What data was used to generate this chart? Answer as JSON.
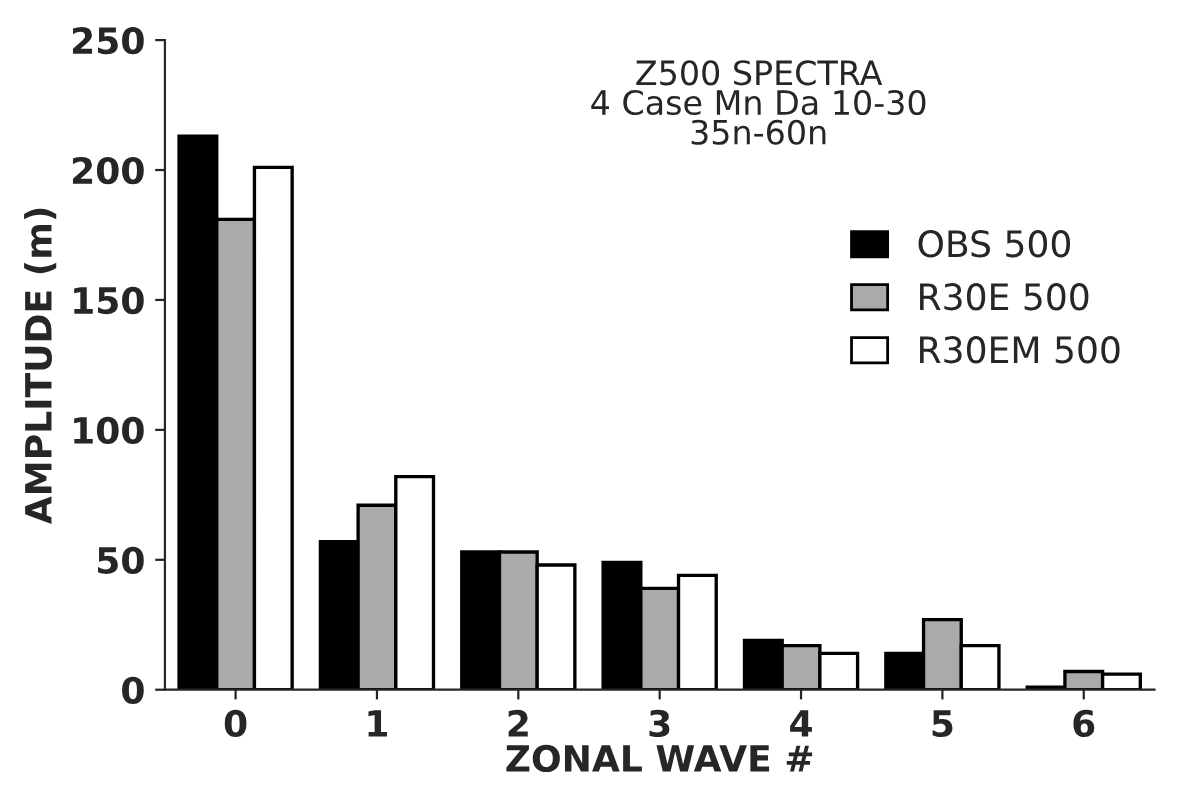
{
  "chart_data": {
    "type": "bar",
    "title": "Z500 SPECTRA\n4 Case Mn Da 10-30\n35n-60n",
    "xlabel": "ZONAL WAVE #",
    "ylabel": "AMPLITUDE (m)",
    "categories": [
      "0",
      "1",
      "2",
      "3",
      "4",
      "5",
      "6"
    ],
    "series": [
      {
        "name": "OBS 500",
        "color": "#000000",
        "values": [
          213,
          57,
          53,
          49,
          19,
          14,
          1
        ]
      },
      {
        "name": "R30E 500",
        "color": "#aaaaaa",
        "values": [
          181,
          71,
          53,
          39,
          17,
          27,
          7
        ]
      },
      {
        "name": "R30EM 500",
        "color": "#ffffff",
        "values": [
          201,
          82,
          48,
          44,
          14,
          17,
          6
        ]
      }
    ],
    "ylim": [
      0,
      250
    ],
    "yticks": [
      0,
      50,
      100,
      150,
      200,
      250
    ],
    "grid": false,
    "legend": "right"
  }
}
